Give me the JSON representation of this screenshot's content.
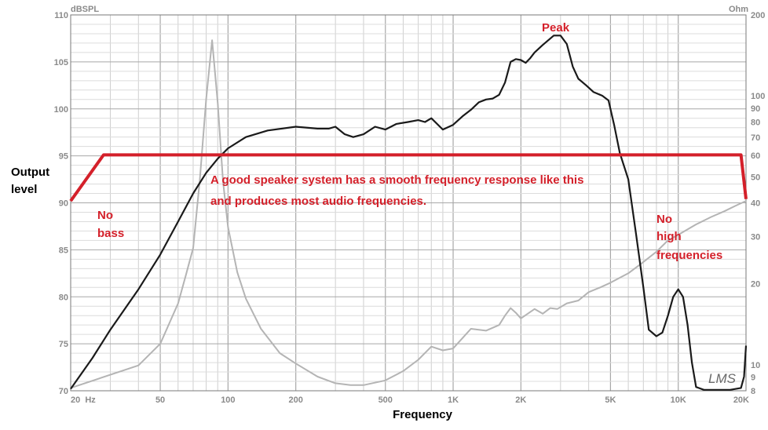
{
  "chart_data": {
    "type": "line",
    "x_scale": "log",
    "xlim": [
      20,
      20000
    ],
    "ylim": [
      70,
      110
    ],
    "ylim_right": [
      8,
      200
    ],
    "grid": true,
    "left_unit": "dBSPL",
    "right_unit": "Ohm",
    "xlabel": "Frequency",
    "ylabel": "Output level",
    "x_ticks": [
      {
        "value": 20,
        "label": "20  Hz"
      },
      {
        "value": 50,
        "label": "50"
      },
      {
        "value": 100,
        "label": "100"
      },
      {
        "value": 200,
        "label": "200"
      },
      {
        "value": 500,
        "label": "500"
      },
      {
        "value": 1000,
        "label": "1K"
      },
      {
        "value": 2000,
        "label": "2K"
      },
      {
        "value": 5000,
        "label": "5K"
      },
      {
        "value": 10000,
        "label": "10K"
      },
      {
        "value": 20000,
        "label": "20K"
      }
    ],
    "y_ticks": [
      {
        "value": 70,
        "label": "70"
      },
      {
        "value": 75,
        "label": "75"
      },
      {
        "value": 80,
        "label": "80"
      },
      {
        "value": 85,
        "label": "85"
      },
      {
        "value": 90,
        "label": "90"
      },
      {
        "value": 95,
        "label": "95"
      },
      {
        "value": 100,
        "label": "100"
      },
      {
        "value": 105,
        "label": "105"
      },
      {
        "value": 110,
        "label": "110"
      }
    ],
    "y_right_ticks": [
      {
        "value": 8,
        "label": "8"
      },
      {
        "value": 9,
        "label": "9"
      },
      {
        "value": 10,
        "label": "10"
      },
      {
        "value": 20,
        "label": "20"
      },
      {
        "value": 30,
        "label": "30"
      },
      {
        "value": 40,
        "label": "40"
      },
      {
        "value": 50,
        "label": "50"
      },
      {
        "value": 60,
        "label": "60"
      },
      {
        "value": 70,
        "label": "70"
      },
      {
        "value": 80,
        "label": "80"
      },
      {
        "value": 90,
        "label": "90"
      },
      {
        "value": 100,
        "label": "100"
      },
      {
        "value": 200,
        "label": "200"
      }
    ],
    "series": [
      {
        "id": "spl",
        "color": "#1a1a1a",
        "points": [
          [
            20,
            70.2
          ],
          [
            25,
            73.5
          ],
          [
            30,
            76.5
          ],
          [
            40,
            80.8
          ],
          [
            50,
            84.5
          ],
          [
            60,
            88
          ],
          [
            70,
            91
          ],
          [
            80,
            93.2
          ],
          [
            90,
            94.7
          ],
          [
            100,
            95.8
          ],
          [
            120,
            97
          ],
          [
            150,
            97.7
          ],
          [
            200,
            98.1
          ],
          [
            250,
            97.9
          ],
          [
            280,
            97.9
          ],
          [
            300,
            98.1
          ],
          [
            330,
            97.3
          ],
          [
            360,
            97
          ],
          [
            400,
            97.3
          ],
          [
            450,
            98.1
          ],
          [
            500,
            97.8
          ],
          [
            560,
            98.4
          ],
          [
            630,
            98.6
          ],
          [
            700,
            98.8
          ],
          [
            750,
            98.6
          ],
          [
            800,
            99
          ],
          [
            900,
            97.8
          ],
          [
            1000,
            98.3
          ],
          [
            1100,
            99.2
          ],
          [
            1200,
            99.9
          ],
          [
            1300,
            100.7
          ],
          [
            1400,
            101
          ],
          [
            1500,
            101.1
          ],
          [
            1600,
            101.5
          ],
          [
            1700,
            102.8
          ],
          [
            1800,
            105
          ],
          [
            1900,
            105.3
          ],
          [
            2000,
            105.2
          ],
          [
            2100,
            104.9
          ],
          [
            2200,
            105.4
          ],
          [
            2300,
            106
          ],
          [
            2500,
            106.8
          ],
          [
            2800,
            107.8
          ],
          [
            3000,
            107.8
          ],
          [
            3200,
            106.9
          ],
          [
            3400,
            104.5
          ],
          [
            3600,
            103.2
          ],
          [
            3900,
            102.5
          ],
          [
            4200,
            101.8
          ],
          [
            4600,
            101.4
          ],
          [
            4900,
            100.9
          ],
          [
            5200,
            98.2
          ],
          [
            5500,
            95.3
          ],
          [
            6000,
            92.5
          ],
          [
            6500,
            86.6
          ],
          [
            7000,
            81
          ],
          [
            7400,
            76.5
          ],
          [
            8000,
            75.8
          ],
          [
            8500,
            76.2
          ],
          [
            9000,
            78
          ],
          [
            9500,
            80
          ],
          [
            10000,
            80.8
          ],
          [
            10500,
            80
          ],
          [
            11000,
            77
          ],
          [
            11500,
            73
          ],
          [
            12000,
            70.4
          ],
          [
            13000,
            70.1
          ],
          [
            15000,
            70.1
          ],
          [
            17000,
            70.1
          ],
          [
            19000,
            70.3
          ],
          [
            19600,
            71.5
          ],
          [
            20000,
            74.8
          ]
        ]
      },
      {
        "id": "impedance",
        "color": "#b4b4b4",
        "points": [
          [
            20,
            70.3
          ],
          [
            40,
            72.7
          ],
          [
            50,
            75
          ],
          [
            60,
            79.3
          ],
          [
            65,
            82.3
          ],
          [
            70,
            85.2
          ],
          [
            75,
            92.6
          ],
          [
            80,
            101.1
          ],
          [
            85,
            107.3
          ],
          [
            90,
            100.6
          ],
          [
            95,
            92.3
          ],
          [
            100,
            87.4
          ],
          [
            110,
            82.6
          ],
          [
            120,
            79.8
          ],
          [
            140,
            76.6
          ],
          [
            170,
            74
          ],
          [
            200,
            72.9
          ],
          [
            250,
            71.5
          ],
          [
            300,
            70.8
          ],
          [
            350,
            70.6
          ],
          [
            400,
            70.6
          ],
          [
            500,
            71.1
          ],
          [
            600,
            72.1
          ],
          [
            700,
            73.3
          ],
          [
            800,
            74.7
          ],
          [
            900,
            74.3
          ],
          [
            1000,
            74.5
          ],
          [
            1100,
            75.6
          ],
          [
            1200,
            76.6
          ],
          [
            1400,
            76.4
          ],
          [
            1600,
            77
          ],
          [
            1700,
            78
          ],
          [
            1800,
            78.8
          ],
          [
            1900,
            78.3
          ],
          [
            2000,
            77.7
          ],
          [
            2300,
            78.7
          ],
          [
            2500,
            78.2
          ],
          [
            2700,
            78.8
          ],
          [
            2900,
            78.7
          ],
          [
            3200,
            79.3
          ],
          [
            3600,
            79.6
          ],
          [
            4000,
            80.5
          ],
          [
            4500,
            81
          ],
          [
            5000,
            81.5
          ],
          [
            6000,
            82.5
          ],
          [
            7000,
            83.7
          ],
          [
            8000,
            84.8
          ],
          [
            9000,
            86
          ],
          [
            10000,
            86.6
          ],
          [
            12000,
            87.7
          ],
          [
            14000,
            88.5
          ],
          [
            16000,
            89.1
          ],
          [
            18000,
            89.7
          ],
          [
            20000,
            90.2
          ]
        ]
      }
    ],
    "overlay": {
      "color": "#d4202a",
      "points": [
        [
          20,
          90.2
        ],
        [
          28,
          95.1
        ],
        [
          19000,
          95.1
        ],
        [
          20000,
          90.4
        ]
      ]
    },
    "annotations": [
      {
        "id": "peak",
        "text": "Peak"
      },
      {
        "id": "no-bass-1",
        "text": "No"
      },
      {
        "id": "no-bass-2",
        "text": "bass"
      },
      {
        "id": "main-1",
        "text": "A good speaker system has a smooth frequency response like this"
      },
      {
        "id": "main-2",
        "text": "and produces most audio frequencies."
      },
      {
        "id": "no-high-1",
        "text": "No"
      },
      {
        "id": "no-high-2",
        "text": "high"
      },
      {
        "id": "no-high-3",
        "text": "frequencies"
      }
    ],
    "watermark": "LMS"
  }
}
